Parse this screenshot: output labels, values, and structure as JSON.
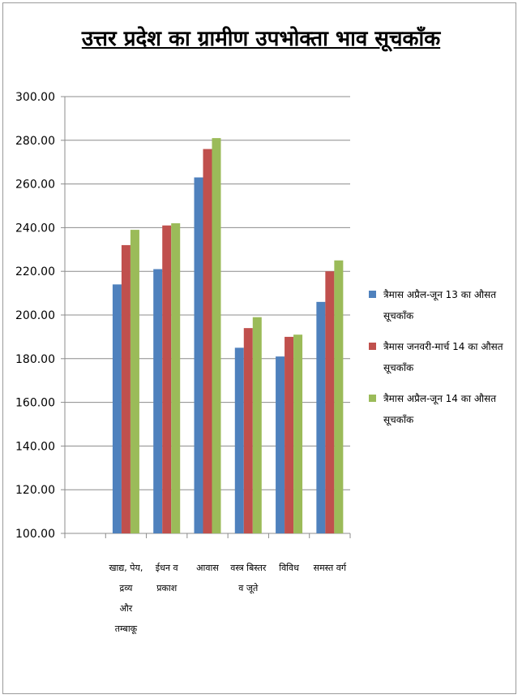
{
  "chart_data": {
    "type": "bar",
    "title": "उत्तर प्रदेश का ग्रामीण उपभोक्ता भाव सूचकाँक",
    "xlabel": "",
    "ylabel": "",
    "ylim": [
      100,
      300
    ],
    "yticks": [
      "100.00",
      "120.00",
      "140.00",
      "160.00",
      "180.00",
      "200.00",
      "220.00",
      "240.00",
      "260.00",
      "280.00",
      "300.00"
    ],
    "categories": [
      [
        "खाद्य, पेय,",
        "द्रव्य",
        "और",
        "तम्बाकू"
      ],
      [
        "ईधन व",
        "प्रकाश"
      ],
      [
        "आवास"
      ],
      [
        "वस्त्र बिस्तर",
        "व जूते"
      ],
      [
        "विविध"
      ],
      [
        "समस्त वर्ग"
      ]
    ],
    "series": [
      {
        "name": "त्रैमास अप्रैल-जून 13 का औसत सूचकाँक",
        "color": "#4F81BD",
        "values": [
          214,
          221,
          263,
          185,
          181,
          206
        ]
      },
      {
        "name": "त्रैमास जनवरी-मार्च 14 का औसत सूचकाँक",
        "color": "#C0504D",
        "values": [
          232,
          241,
          276,
          194,
          190,
          220
        ]
      },
      {
        "name": "त्रैमास अप्रैल-जून 14 का औसत सूचकाँक",
        "color": "#9BBB59",
        "values": [
          239,
          242,
          281,
          199,
          191,
          225
        ]
      }
    ],
    "grid": true,
    "legend_position": "right"
  }
}
